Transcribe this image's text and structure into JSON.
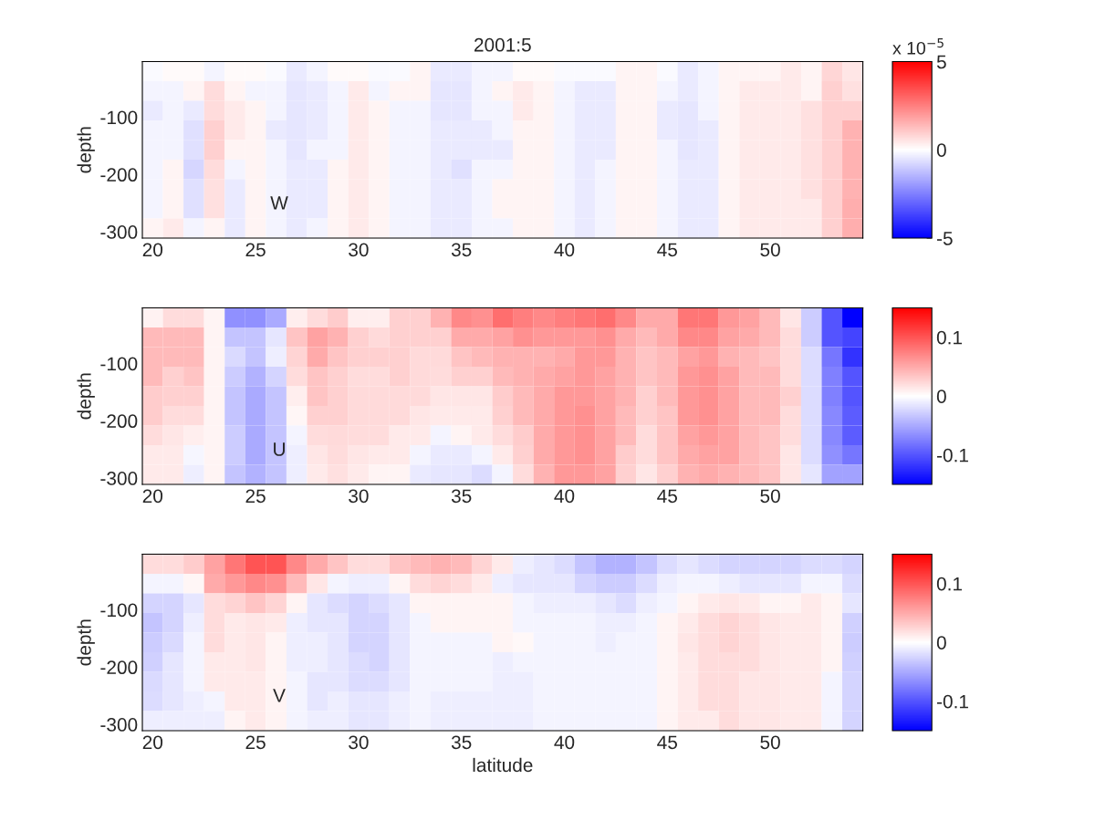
{
  "chart_data": [
    {
      "type": "heatmap",
      "title": "2001:5",
      "ylabel": "depth",
      "annotations": [
        "W"
      ],
      "clabel": "x 10$^{−5}$",
      "xlim": [
        19.5,
        54.5
      ],
      "xticks": [
        20,
        25,
        30,
        35,
        40,
        45,
        50
      ],
      "ylim": [
        -311,
        -3
      ],
      "yticks": [
        -300,
        -200,
        -100
      ],
      "clim": [
        -5,
        5
      ],
      "cticks": [
        -5,
        0,
        5
      ],
      "cells": [
        [
          -0.1,
          0.1,
          0.1,
          -0.2,
          0.1,
          0.1,
          -0.1,
          -0.4,
          -0.2,
          0.1,
          0.1,
          -0.1,
          -0.1,
          0.2,
          -0.4,
          -0.4,
          -0.2,
          -0.2,
          0.1,
          0.1,
          -0.1,
          -0.1,
          -0.1,
          0.2,
          0.2,
          -0.1,
          -0.4,
          -0.2,
          0.2,
          0.2,
          0.2,
          0.4,
          0.2,
          0.8,
          0.5
        ],
        [
          -0.2,
          -0.2,
          0.2,
          0.7,
          0.2,
          -0.2,
          -0.2,
          -0.5,
          -0.4,
          -0.2,
          0.4,
          -0.2,
          0.2,
          0.2,
          -0.5,
          -0.5,
          -0.2,
          0.2,
          0.4,
          0.2,
          -0.2,
          -0.4,
          -0.4,
          0.2,
          0.2,
          -0.2,
          -0.4,
          -0.2,
          0.2,
          0.4,
          0.4,
          0.4,
          0.2,
          0.9,
          0.6
        ],
        [
          -0.4,
          -0.2,
          -0.4,
          0.7,
          0.4,
          0.2,
          -0.2,
          -0.5,
          -0.4,
          -0.2,
          0.4,
          0.2,
          -0.2,
          -0.2,
          -0.5,
          -0.5,
          -0.2,
          -0.2,
          0.4,
          0.2,
          -0.2,
          -0.4,
          -0.4,
          0.2,
          0.2,
          -0.4,
          -0.5,
          -0.2,
          0.2,
          0.4,
          0.4,
          0.4,
          0.6,
          0.9,
          0.9
        ],
        [
          -0.2,
          -0.2,
          -0.6,
          0.9,
          0.4,
          0.2,
          -0.4,
          -0.5,
          -0.4,
          -0.2,
          0.4,
          0.2,
          -0.2,
          -0.2,
          -0.4,
          -0.4,
          -0.4,
          -0.2,
          0.2,
          0.2,
          -0.2,
          -0.4,
          -0.4,
          0.2,
          0.2,
          -0.4,
          -0.5,
          -0.4,
          0.2,
          0.4,
          0.4,
          0.4,
          0.6,
          0.9,
          1.5
        ],
        [
          -0.2,
          -0.2,
          -0.6,
          0.9,
          0.2,
          0.2,
          -0.2,
          -0.5,
          -0.2,
          -0.2,
          0.4,
          0.2,
          -0.2,
          -0.2,
          -0.4,
          -0.4,
          -0.4,
          -0.4,
          0.2,
          0.2,
          -0.2,
          -0.4,
          -0.4,
          0.2,
          0.2,
          -0.2,
          -0.5,
          -0.4,
          0.2,
          0.4,
          0.4,
          0.4,
          0.6,
          0.9,
          1.5
        ],
        [
          -0.2,
          0.2,
          -0.8,
          0.7,
          -0.2,
          0.2,
          -0.2,
          -0.4,
          -0.4,
          0.2,
          0.4,
          0.2,
          -0.2,
          -0.2,
          -0.4,
          -0.6,
          -0.2,
          -0.2,
          0.2,
          0.2,
          -0.2,
          -0.4,
          -0.2,
          0.2,
          0.2,
          -0.2,
          -0.4,
          -0.4,
          0.2,
          0.4,
          0.4,
          0.4,
          0.6,
          0.9,
          1.5
        ],
        [
          -0.2,
          0.2,
          -0.6,
          0.6,
          -0.4,
          0.2,
          -0.2,
          -0.4,
          -0.4,
          0.2,
          0.4,
          0.2,
          -0.2,
          -0.2,
          -0.4,
          -0.4,
          -0.2,
          0.2,
          0.2,
          0.2,
          -0.2,
          -0.4,
          -0.2,
          0.2,
          0.2,
          -0.2,
          -0.4,
          -0.4,
          0.2,
          0.4,
          0.4,
          0.4,
          0.6,
          0.9,
          1.5
        ],
        [
          -0.2,
          0.2,
          -0.6,
          0.6,
          -0.4,
          0.2,
          -0.2,
          -0.4,
          -0.4,
          0.2,
          0.4,
          0.2,
          -0.2,
          -0.2,
          -0.4,
          -0.4,
          -0.2,
          0.2,
          0.2,
          0.2,
          -0.2,
          -0.4,
          -0.2,
          0.2,
          0.2,
          -0.2,
          -0.4,
          -0.4,
          0.2,
          0.4,
          0.4,
          0.4,
          0.4,
          0.9,
          1.6
        ],
        [
          0.2,
          0.4,
          -0.2,
          0.2,
          -0.4,
          0.2,
          -0.2,
          -0.4,
          -0.2,
          0.2,
          0.4,
          0.2,
          -0.2,
          -0.2,
          -0.4,
          -0.4,
          -0.2,
          -0.2,
          0.2,
          0.2,
          -0.2,
          -0.4,
          -0.2,
          0.2,
          0.2,
          -0.2,
          -0.4,
          -0.4,
          0.2,
          0.4,
          0.4,
          0.4,
          0.4,
          0.9,
          1.6
        ]
      ]
    },
    {
      "type": "heatmap",
      "ylabel": "depth",
      "annotations": [
        "U"
      ],
      "xlim": [
        19.5,
        54.5
      ],
      "xticks": [
        20,
        25,
        30,
        35,
        40,
        45,
        50
      ],
      "ylim": [
        -311,
        -3
      ],
      "yticks": [
        -300,
        -200,
        -100
      ],
      "clim": [
        -0.15,
        0.15
      ],
      "cticks": [
        -0.1,
        0,
        0.1
      ],
      "cells": [
        [
          0.008,
          0.02,
          0.02,
          0.006,
          -0.065,
          -0.065,
          -0.05,
          0.01,
          0.02,
          0.03,
          0.01,
          0.01,
          0.027,
          0.027,
          0.045,
          0.07,
          0.065,
          0.085,
          0.075,
          0.07,
          0.075,
          0.08,
          0.085,
          0.07,
          0.05,
          0.05,
          0.08,
          0.08,
          0.06,
          0.055,
          0.04,
          0.015,
          -0.03,
          -0.1,
          -0.15
        ],
        [
          0.04,
          0.04,
          0.04,
          0.006,
          -0.035,
          -0.035,
          -0.015,
          0.035,
          0.055,
          0.045,
          0.027,
          0.022,
          0.027,
          0.027,
          0.027,
          0.05,
          0.05,
          0.055,
          0.065,
          0.06,
          0.06,
          0.06,
          0.065,
          0.05,
          0.04,
          0.05,
          0.07,
          0.07,
          0.055,
          0.05,
          0.04,
          0.02,
          -0.03,
          -0.1,
          -0.11
        ],
        [
          0.04,
          0.04,
          0.04,
          0.006,
          -0.022,
          -0.035,
          -0.01,
          0.025,
          0.05,
          0.035,
          0.027,
          0.027,
          0.027,
          0.022,
          0.022,
          0.035,
          0.04,
          0.045,
          0.045,
          0.045,
          0.05,
          0.06,
          0.06,
          0.045,
          0.035,
          0.04,
          0.055,
          0.06,
          0.045,
          0.04,
          0.035,
          0.02,
          -0.02,
          -0.08,
          -0.12
        ],
        [
          0.04,
          0.027,
          0.035,
          0.006,
          -0.03,
          -0.045,
          -0.025,
          0.02,
          0.035,
          0.027,
          0.02,
          0.02,
          0.027,
          0.022,
          0.02,
          0.027,
          0.027,
          0.04,
          0.045,
          0.05,
          0.055,
          0.06,
          0.055,
          0.045,
          0.035,
          0.04,
          0.06,
          0.065,
          0.055,
          0.04,
          0.04,
          0.02,
          -0.02,
          -0.075,
          -0.1
        ],
        [
          0.03,
          0.027,
          0.027,
          0.006,
          -0.035,
          -0.05,
          -0.035,
          0.01,
          0.035,
          0.027,
          0.022,
          0.022,
          0.022,
          0.022,
          0.015,
          0.015,
          0.015,
          0.03,
          0.04,
          0.05,
          0.06,
          0.06,
          0.055,
          0.045,
          0.027,
          0.04,
          0.06,
          0.065,
          0.055,
          0.04,
          0.04,
          0.027,
          -0.02,
          -0.075,
          -0.1
        ],
        [
          0.03,
          0.02,
          0.02,
          0.006,
          -0.035,
          -0.05,
          -0.035,
          0.005,
          0.027,
          0.027,
          0.022,
          0.022,
          0.022,
          0.015,
          0.012,
          0.012,
          0.012,
          0.027,
          0.04,
          0.05,
          0.06,
          0.065,
          0.055,
          0.04,
          0.027,
          0.035,
          0.06,
          0.065,
          0.055,
          0.04,
          0.04,
          0.02,
          -0.02,
          -0.07,
          -0.095
        ],
        [
          0.02,
          0.015,
          0.01,
          0.006,
          -0.03,
          -0.05,
          -0.035,
          -0.006,
          0.02,
          0.022,
          0.02,
          0.02,
          0.012,
          0.012,
          -0.006,
          0.006,
          0.012,
          0.02,
          0.03,
          0.05,
          0.06,
          0.065,
          0.055,
          0.04,
          0.02,
          0.035,
          0.055,
          0.06,
          0.055,
          0.04,
          0.035,
          0.02,
          -0.02,
          -0.07,
          -0.095
        ],
        [
          0.012,
          0.012,
          -0.005,
          0.006,
          -0.03,
          -0.05,
          -0.035,
          -0.01,
          0.015,
          0.02,
          0.015,
          0.012,
          0.012,
          -0.006,
          -0.012,
          -0.012,
          -0.006,
          0.012,
          0.027,
          0.05,
          0.06,
          0.065,
          0.055,
          0.03,
          0.02,
          0.035,
          0.05,
          0.055,
          0.055,
          0.04,
          0.035,
          0.015,
          -0.02,
          -0.065,
          -0.08
        ],
        [
          0.012,
          0.012,
          -0.01,
          0.006,
          -0.035,
          -0.045,
          -0.035,
          -0.01,
          0.012,
          0.018,
          0.012,
          0.006,
          0.006,
          -0.012,
          -0.015,
          -0.015,
          -0.02,
          -0.006,
          0.02,
          0.045,
          0.06,
          0.06,
          0.055,
          0.027,
          0.015,
          0.027,
          0.045,
          0.05,
          0.045,
          0.04,
          0.035,
          0.015,
          -0.015,
          -0.055,
          -0.055
        ]
      ]
    },
    {
      "type": "heatmap",
      "ylabel": "depth",
      "xlabel": "latitude",
      "annotations": [
        "V"
      ],
      "xlim": [
        19.5,
        54.5
      ],
      "xticks": [
        20,
        25,
        30,
        35,
        40,
        45,
        50
      ],
      "ylim": [
        -311,
        -3
      ],
      "yticks": [
        -300,
        -200,
        -100
      ],
      "clim": [
        -0.15,
        0.15
      ],
      "cticks": [
        -0.1,
        0,
        0.1
      ],
      "cells": [
        [
          0.02,
          0.02,
          0.03,
          0.055,
          0.08,
          0.1,
          0.1,
          0.07,
          0.05,
          0.035,
          0.02,
          0.02,
          0.035,
          0.04,
          0.045,
          0.04,
          0.025,
          0.012,
          -0.01,
          -0.015,
          -0.02,
          -0.035,
          -0.045,
          -0.045,
          -0.035,
          -0.02,
          -0.015,
          -0.02,
          -0.025,
          -0.025,
          -0.025,
          -0.025,
          -0.02,
          -0.02,
          -0.025
        ],
        [
          -0.006,
          -0.006,
          0.005,
          0.05,
          0.06,
          0.07,
          0.065,
          0.04,
          0.015,
          -0.006,
          -0.01,
          -0.01,
          0.006,
          0.02,
          0.025,
          0.02,
          0.012,
          -0.01,
          -0.015,
          -0.015,
          -0.015,
          -0.025,
          -0.03,
          -0.03,
          -0.02,
          -0.01,
          -0.006,
          -0.006,
          -0.01,
          -0.015,
          -0.015,
          -0.015,
          -0.006,
          -0.006,
          -0.02
        ],
        [
          -0.025,
          -0.025,
          -0.015,
          0.02,
          0.025,
          0.035,
          0.025,
          0.006,
          -0.015,
          -0.02,
          -0.025,
          -0.02,
          -0.015,
          0.006,
          0.006,
          0.006,
          0.006,
          0.006,
          -0.006,
          -0.01,
          -0.01,
          -0.01,
          -0.015,
          -0.02,
          -0.01,
          -0.006,
          0.006,
          0.012,
          0.015,
          0.012,
          0.006,
          0.006,
          0.012,
          0.006,
          -0.015
        ],
        [
          -0.035,
          -0.025,
          -0.01,
          0.02,
          0.012,
          0.015,
          0.012,
          -0.01,
          -0.015,
          -0.015,
          -0.025,
          -0.025,
          -0.015,
          -0.006,
          0.006,
          0.006,
          0.006,
          0.006,
          -0.006,
          -0.006,
          -0.006,
          -0.006,
          -0.01,
          -0.01,
          -0.006,
          0.006,
          0.012,
          0.02,
          0.025,
          0.02,
          0.015,
          0.012,
          0.012,
          0.006,
          -0.027
        ],
        [
          -0.03,
          -0.022,
          -0.006,
          0.02,
          0.012,
          0.015,
          0.006,
          -0.01,
          -0.01,
          -0.015,
          -0.025,
          -0.025,
          -0.015,
          -0.006,
          -0.006,
          -0.006,
          -0.006,
          0.006,
          0.004,
          -0.006,
          -0.006,
          -0.006,
          -0.01,
          -0.006,
          -0.006,
          0.006,
          0.015,
          0.02,
          0.025,
          0.02,
          0.015,
          0.012,
          0.012,
          0.006,
          -0.03
        ],
        [
          -0.027,
          -0.015,
          -0.006,
          0.012,
          0.012,
          0.015,
          0.006,
          -0.01,
          -0.01,
          -0.015,
          -0.02,
          -0.025,
          -0.015,
          -0.006,
          -0.006,
          -0.006,
          -0.006,
          -0.01,
          -0.006,
          -0.006,
          -0.006,
          -0.006,
          -0.006,
          -0.006,
          -0.006,
          0.006,
          0.012,
          0.02,
          0.02,
          0.02,
          0.015,
          0.012,
          0.012,
          0.006,
          -0.027
        ],
        [
          -0.022,
          -0.015,
          -0.006,
          0.012,
          0.012,
          0.012,
          0.006,
          -0.006,
          -0.015,
          -0.015,
          -0.02,
          -0.02,
          -0.015,
          -0.006,
          -0.006,
          -0.006,
          -0.006,
          -0.01,
          -0.01,
          -0.006,
          -0.006,
          -0.006,
          -0.006,
          -0.006,
          -0.006,
          0.006,
          0.012,
          0.02,
          0.02,
          0.015,
          0.015,
          0.012,
          0.012,
          -0.006,
          -0.025
        ],
        [
          -0.02,
          -0.015,
          -0.01,
          -0.006,
          0.012,
          0.012,
          0.006,
          -0.006,
          -0.015,
          -0.01,
          -0.015,
          -0.015,
          -0.01,
          -0.006,
          -0.01,
          -0.01,
          -0.01,
          -0.01,
          -0.01,
          -0.006,
          -0.006,
          -0.006,
          -0.006,
          -0.006,
          -0.006,
          0.006,
          0.012,
          0.02,
          0.02,
          0.015,
          0.015,
          0.012,
          0.012,
          -0.006,
          -0.025
        ],
        [
          -0.01,
          -0.01,
          -0.01,
          -0.01,
          0.006,
          0.012,
          0.006,
          -0.006,
          -0.01,
          -0.01,
          -0.015,
          -0.015,
          -0.01,
          -0.006,
          -0.01,
          -0.01,
          -0.01,
          -0.01,
          -0.01,
          -0.006,
          -0.006,
          -0.006,
          -0.006,
          -0.006,
          -0.006,
          0.006,
          0.012,
          0.012,
          0.02,
          0.015,
          0.015,
          0.012,
          0.012,
          -0.006,
          -0.025
        ]
      ]
    }
  ]
}
